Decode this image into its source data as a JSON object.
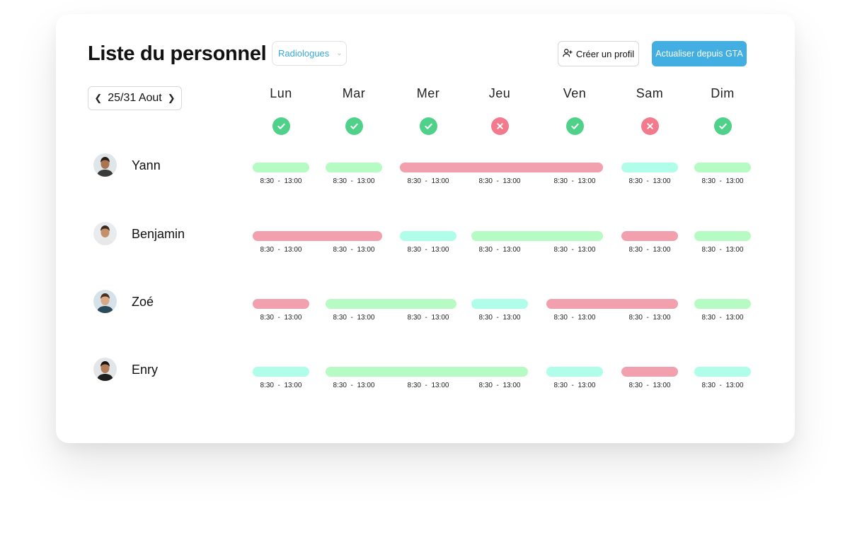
{
  "header": {
    "title": "Liste du personnel",
    "filter_value": "Radiologues",
    "create_label": "Créer un profil",
    "refresh_label": "Actualiser depuis GTA",
    "week_label": "25/31 Aout"
  },
  "days": [
    {
      "label": "Lun",
      "status": "ok"
    },
    {
      "label": "Mar",
      "status": "ok"
    },
    {
      "label": "Mer",
      "status": "ok"
    },
    {
      "label": "Jeu",
      "status": "ko"
    },
    {
      "label": "Ven",
      "status": "ok"
    },
    {
      "label": "Sam",
      "status": "ko"
    },
    {
      "label": "Dim",
      "status": "ok"
    }
  ],
  "staff": [
    {
      "name": "Yann",
      "times": [
        "8:30  -  13:00",
        "8:30  -  13:00",
        "8:30  -  13:00",
        "8:30  -  13:00",
        "8:30  -  13:00",
        "8:30  -  13:00",
        "8:30  -  13:00"
      ],
      "shifts": [
        {
          "start": 0,
          "span": 1,
          "color": "green"
        },
        {
          "start": 1,
          "span": 1,
          "color": "green"
        },
        {
          "start": 2,
          "span": 3,
          "color": "red"
        },
        {
          "start": 5,
          "span": 1,
          "color": "cyan"
        },
        {
          "start": 6,
          "span": 1,
          "color": "green"
        }
      ]
    },
    {
      "name": "Benjamin",
      "times": [
        "8:30  -  13:00",
        "8:30  -  13:00",
        "8:30  -  13:00",
        "8:30  -  13:00",
        "8:30  -  13:00",
        "8:30  -  13:00",
        "8:30  -  13:00"
      ],
      "shifts": [
        {
          "start": 0,
          "span": 2,
          "color": "red"
        },
        {
          "start": 2,
          "span": 1,
          "color": "cyan"
        },
        {
          "start": 3,
          "span": 2,
          "color": "green"
        },
        {
          "start": 5,
          "span": 1,
          "color": "red"
        },
        {
          "start": 6,
          "span": 1,
          "color": "green"
        }
      ]
    },
    {
      "name": "Zoé",
      "times": [
        "8:30  -  13:00",
        "8:30  -  13:00",
        "8:30  -  13:00",
        "8:30  -  13:00",
        "8:30  -  13:00",
        "8:30  -  13:00",
        "8:30  -  13:00"
      ],
      "shifts": [
        {
          "start": 0,
          "span": 1,
          "color": "red"
        },
        {
          "start": 1,
          "span": 2,
          "color": "green"
        },
        {
          "start": 3,
          "span": 1,
          "color": "cyan"
        },
        {
          "start": 4,
          "span": 2,
          "color": "red"
        },
        {
          "start": 6,
          "span": 1,
          "color": "green"
        }
      ]
    },
    {
      "name": "Enry",
      "times": [
        "8:30  -  13:00",
        "8:30  -  13:00",
        "8:30  -  13:00",
        "8:30  -  13:00",
        "8:30  -  13:00",
        "8:30  -  13:00",
        "8:30  -  13:00"
      ],
      "shifts": [
        {
          "start": 0,
          "span": 1,
          "color": "cyan"
        },
        {
          "start": 1,
          "span": 3,
          "color": "green"
        },
        {
          "start": 4,
          "span": 1,
          "color": "cyan"
        },
        {
          "start": 5,
          "span": 1,
          "color": "red"
        },
        {
          "start": 6,
          "span": 1,
          "color": "cyan"
        }
      ]
    }
  ],
  "colors": {
    "accent": "#42aee2",
    "ok": "#4fd18a",
    "ko": "#f27a8c",
    "green": "#b6fbc4",
    "red": "#f2a0ad",
    "cyan": "#b0fdea"
  }
}
